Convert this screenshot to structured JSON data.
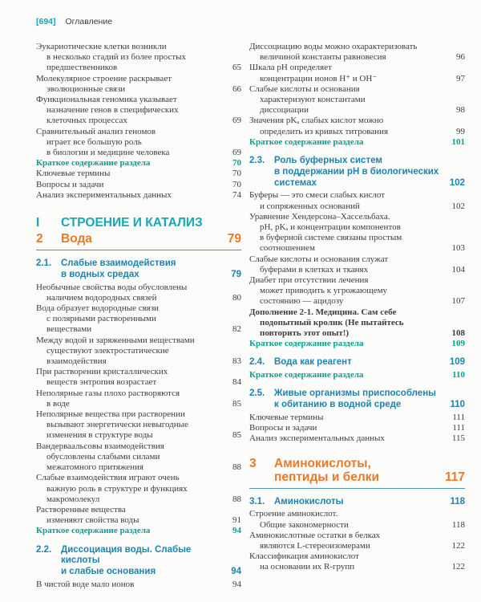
{
  "header": {
    "page_number": "[694]",
    "label": "Оглавление"
  },
  "colors": {
    "teal": "#18a7b5",
    "orange": "#e87a28",
    "section_blue": "#1c84ae",
    "summary_green": "#0aa08f",
    "text": "#3d3d3c",
    "rule": "#4e93b4"
  },
  "left_column": {
    "blocks": [
      {
        "type": "entry",
        "text": "Эукариотические клетки возникли\nв несколько стадий из более простых\nпредшественников",
        "page": "65"
      },
      {
        "type": "entry",
        "text": "Молекулярное строение раскрывает\nэволюционные связи",
        "page": "66"
      },
      {
        "type": "entry",
        "text": "Функциональная геномика указывает\nназначение генов в специфических\nклеточных процессах",
        "page": "69"
      },
      {
        "type": "entry",
        "text": "Сравнительный анализ геномов\nиграет все большую роль\nв биологии и медицине человека",
        "page": "69"
      },
      {
        "type": "summary",
        "text": "Краткое содержание раздела",
        "page": "70"
      },
      {
        "type": "entry",
        "text": "Ключевые термины",
        "page": "70"
      },
      {
        "type": "entry",
        "text": "Вопросы и задачи",
        "page": "70"
      },
      {
        "type": "entry",
        "text": "Анализ экспериментальных данных",
        "page": "74"
      },
      {
        "type": "part",
        "num": "I",
        "title": "СТРОЕНИЕ И КАТАЛИЗ"
      },
      {
        "type": "chapter",
        "num": "2",
        "title": "Вода",
        "page": "79"
      },
      {
        "type": "section",
        "num": "2.1.",
        "title": "Слабые взаимодействия\nв водных средах",
        "page": "79"
      },
      {
        "type": "entry",
        "text": "Необычные свойства воды обусловлены\nналичием водородных связей",
        "page": "80"
      },
      {
        "type": "entry",
        "text": "Вода образует водородные связи\nс полярными растворенными\nвеществами",
        "page": "82"
      },
      {
        "type": "entry",
        "text": "Между водой и заряженными веществами\nсуществуют электростатические\nвзаимодействия",
        "page": "83"
      },
      {
        "type": "entry",
        "text": "При растворении кристаллических\nвеществ энтропия возрастает",
        "page": "84"
      },
      {
        "type": "entry",
        "text": "Неполярные газы плохо растворяются\nв воде",
        "page": "85"
      },
      {
        "type": "entry",
        "text": "Неполярные вещества при растворении\nвызывают энергетически невыгодные\nизменения в структуре воды",
        "page": "85"
      },
      {
        "type": "entry",
        "text": "Вандерваальсовы взаимодействия\nобусловлены слабыми силами\nмежатомного притяжения",
        "page": "88"
      },
      {
        "type": "entry",
        "text": "Слабые взаимодействия играют очень\nважную роль в структуре и функциях\nмакромолекул",
        "page": "88"
      },
      {
        "type": "entry",
        "text": "Растворенные вещества\nизменяют свойства воды",
        "page": "91"
      },
      {
        "type": "summary",
        "text": "Краткое содержание раздела",
        "page": "94"
      },
      {
        "type": "section",
        "num": "2.2.",
        "title": "Диссоциация воды. Слабые кислоты\nи слабые основания",
        "page": "94"
      },
      {
        "type": "entry",
        "text": "В чистой воде мало ионов",
        "page": "94"
      }
    ]
  },
  "right_column": {
    "blocks": [
      {
        "type": "entry",
        "text": "Диссоциацию воды можно охарактеризовать\nвеличиной константы равновесия",
        "page": "96"
      },
      {
        "type": "entry",
        "text": "Шкала pH определяет\nконцентрации ионов H⁺ и OH⁻",
        "page": "97"
      },
      {
        "type": "entry",
        "text": "Слабые кислоты и основания\nхарактеризуют константами\nдиссоциации",
        "page": "98"
      },
      {
        "type": "entry",
        "text": "Значения pKₐ слабых кислот можно\nопределить из кривых титрования",
        "page": "99"
      },
      {
        "type": "summary",
        "text": "Краткое содержание раздела",
        "page": "101"
      },
      {
        "type": "section",
        "num": "2.3.",
        "title": "Роль буферных систем\nв поддержании pH в биологических\nсистемах",
        "page": "102"
      },
      {
        "type": "entry",
        "text": "Буферы — это смеси слабых кислот\nи сопряженных оснований",
        "page": "102"
      },
      {
        "type": "entry",
        "text": "Уравнение Хендерсона–Хассельбаха.\npH, pKₐ и концентрации компонентов\nв буферной системе связаны простым\nсоотношением",
        "page": "103"
      },
      {
        "type": "entry",
        "text": "Слабые кислоты и основания служат\nбуферами в клетках и тканях",
        "page": "104"
      },
      {
        "type": "entry",
        "text": "Диабет при отсутствии лечения\nможет приводить к угрожающему\nсостоянию — ацидозу",
        "page": "107"
      },
      {
        "type": "box",
        "text": "Дополнение 2-1. Медицина. Сам себе\nподопытный кролик (Не пытайтесь\nповторить этот опыт!)",
        "page": "108"
      },
      {
        "type": "summary",
        "text": "Краткое содержание раздела",
        "page": "109"
      },
      {
        "type": "section",
        "num": "2.4.",
        "title": "Вода как реагент",
        "page": "109"
      },
      {
        "type": "summary",
        "text": "Краткое содержание раздела",
        "page": "110"
      },
      {
        "type": "section",
        "num": "2.5.",
        "title": "Живые организмы приспособлены\nк обитанию в водной среде",
        "page": "110"
      },
      {
        "type": "entry",
        "text": "Ключевые термины",
        "page": "111"
      },
      {
        "type": "entry",
        "text": "Вопросы и задачи",
        "page": "111"
      },
      {
        "type": "entry",
        "text": "Анализ экспериментальных данных",
        "page": "115"
      },
      {
        "type": "chapter",
        "num": "3",
        "title": "Аминокислоты,\nпептиды и белки",
        "page": "117"
      },
      {
        "type": "section",
        "num": "3.1.",
        "title": "Аминокислоты",
        "page": "118"
      },
      {
        "type": "entry",
        "text": "Строение аминокислот.\nОбщие закономерности",
        "page": "118"
      },
      {
        "type": "entry",
        "text": "Аминокислотные остатки в белках\nявляются L-стереоизомерами",
        "page": "122"
      },
      {
        "type": "entry",
        "text": "Классификация аминокислот\nна основании их R-групп",
        "page": "122"
      }
    ]
  }
}
